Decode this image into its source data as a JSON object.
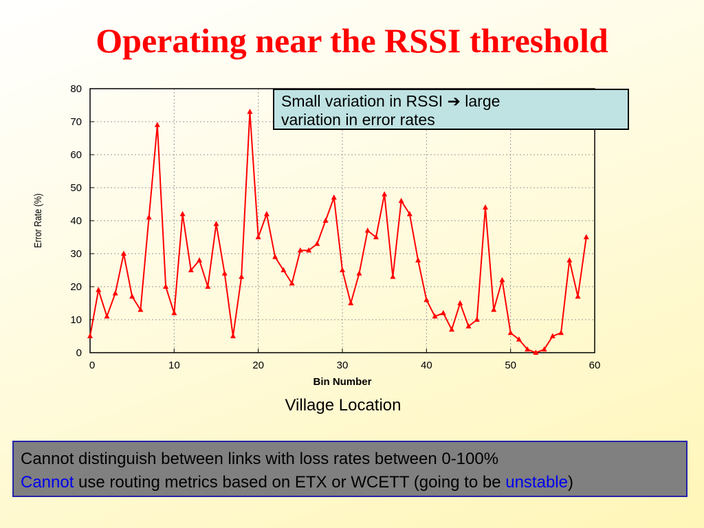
{
  "slide": {
    "title": "Operating near the RSSI threshold"
  },
  "callout": {
    "line1_a": "Small variation in RSSI",
    "arrow": "➔",
    "line1_b": "large",
    "line2": "variation in error rates"
  },
  "caption": "Village Location",
  "note": {
    "line1": "Cannot distinguish between links with loss rates between 0-100%",
    "line2_blue_a": "Cannot",
    "line2_mid": " use routing metrics based on ETX or WCETT (going to be ",
    "line2_blue_b": "unstable",
    "line2_end": ")"
  },
  "colors": {
    "title": "#ff0000",
    "series": "#ff0000",
    "callout_bg": "#bfe2e2",
    "note_bg": "#808080",
    "note_border": "#2222aa",
    "highlight_text": "#0000ee"
  },
  "chart_data": {
    "type": "line",
    "xlabel": "Bin Number",
    "ylabel": "Error Rate (%)",
    "xlim": [
      0,
      60
    ],
    "ylim": [
      0,
      80
    ],
    "xticks": [
      0,
      10,
      20,
      30,
      40,
      50,
      60
    ],
    "yticks": [
      0,
      10,
      20,
      30,
      40,
      50,
      60,
      70,
      80
    ],
    "grid": true,
    "marker": "triangle",
    "series": [
      {
        "x": [
          0,
          1,
          2,
          3,
          4,
          5,
          6,
          7,
          8,
          9,
          10,
          11,
          12,
          13,
          14,
          15,
          16,
          17,
          18,
          19,
          20,
          21,
          22,
          23,
          24,
          25,
          26,
          27,
          28,
          29,
          30,
          31,
          32,
          33,
          34,
          35,
          36,
          37,
          38,
          39,
          40,
          41,
          42,
          43,
          44,
          45,
          46,
          47,
          48,
          49,
          50,
          51,
          52,
          53,
          54,
          55,
          56,
          57,
          58,
          59
        ],
        "values": [
          5,
          19,
          11,
          18,
          30,
          17,
          13,
          41,
          69,
          20,
          12,
          42,
          25,
          28,
          20,
          39,
          24,
          5,
          23,
          73,
          35,
          42,
          29,
          25,
          21,
          31,
          31,
          33,
          40,
          47,
          25,
          15,
          24,
          37,
          35,
          48,
          23,
          46,
          42,
          28,
          16,
          11,
          12,
          7,
          15,
          8,
          10,
          44,
          13,
          22,
          6,
          4,
          1,
          0,
          1,
          5,
          6,
          28,
          17,
          35
        ]
      }
    ]
  }
}
